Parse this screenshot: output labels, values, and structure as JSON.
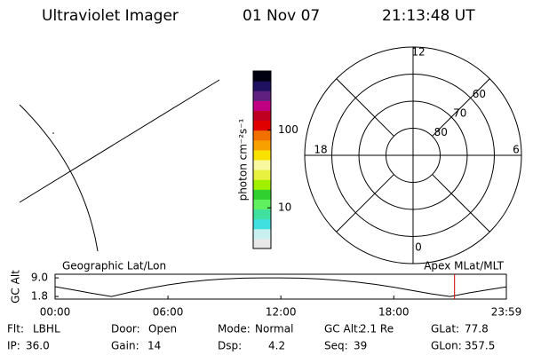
{
  "header": {
    "instrument": "Ultraviolet Imager",
    "date": "01 Nov 07",
    "time": "21:13:48 UT"
  },
  "colorbar": {
    "label": "photon cm⁻²s⁻¹",
    "clim": [
      3,
      575
    ],
    "log": true,
    "ticks": [
      10,
      100
    ],
    "colormap": [
      "#e8e8e8",
      "#c8f0f0",
      "#40e0e0",
      "#40e0a0",
      "#60f060",
      "#30d030",
      "#a0f000",
      "#e8f040",
      "#f8f8a0",
      "#f8e000",
      "#f8a000",
      "#f07000",
      "#e00000",
      "#c00020",
      "#c00080",
      "#602080",
      "#201060",
      "#000010"
    ]
  },
  "polar": {
    "lat_min": 50,
    "lat_circles": [
      80,
      70,
      60
    ],
    "mlt_labels": [
      12,
      18,
      6,
      0
    ]
  },
  "chart_data": {
    "type": "line",
    "left_label": "Geographic Lat/Lon",
    "right_label": "Apex MLat/MLT",
    "ylabel": "GC Alt",
    "x": [
      0,
      1,
      2,
      3,
      4,
      5,
      6,
      7,
      8,
      9,
      10,
      11,
      12,
      13,
      14,
      15,
      16,
      17,
      18,
      19,
      20,
      21,
      22,
      23,
      23.983
    ],
    "series": [
      {
        "name": "GC Alt",
        "color": "#000000",
        "values": [
          5.6,
          4.3,
          3.0,
          1.8,
          3.5,
          5.0,
          6.3,
          7.3,
          8.1,
          8.6,
          8.9,
          9.0,
          9.0,
          8.9,
          8.6,
          8.1,
          7.4,
          6.5,
          5.4,
          4.1,
          2.8,
          1.8,
          3.2,
          4.4,
          5.5
        ]
      }
    ],
    "current_time": 21.23,
    "current_color": "#d00000",
    "xlim": [
      0,
      23.983
    ],
    "ylim": [
      0.8,
      10.4
    ],
    "xticks": [
      {
        "value": 0,
        "label": "00:00"
      },
      {
        "value": 6,
        "label": "06:00"
      },
      {
        "value": 12,
        "label": "12:00"
      },
      {
        "value": 18,
        "label": "18:00"
      },
      {
        "value": 23.983,
        "label": "23:59"
      }
    ],
    "yticks": [
      1.8,
      {
        "value": 9,
        "label": "9.0"
      }
    ]
  },
  "info": [
    [
      {
        "label": "Flt:",
        "value": "LBHL"
      },
      {
        "label": "Door:",
        "value": "Open"
      },
      {
        "label": "Mode:",
        "value": "Normal"
      },
      {
        "label": "GC Alt:",
        "value": "2.1 Re"
      },
      {
        "label": "GLat:",
        "value": "77.8"
      }
    ],
    [
      {
        "label": "IP:",
        "value": "36.0"
      },
      {
        "label": "Gain:",
        "value": "14"
      },
      {
        "label": "Dsp:",
        "value": "4.2"
      },
      {
        "label": "Seq:",
        "value": "39"
      },
      {
        "label": "GLon:",
        "value": "357.5"
      }
    ]
  ]
}
